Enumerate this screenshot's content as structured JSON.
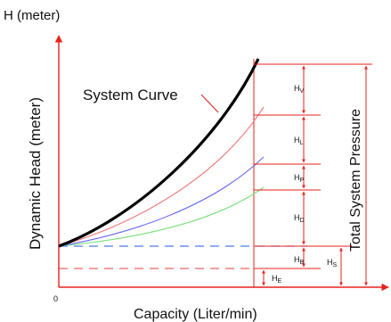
{
  "labels": {
    "y_unit": "H (meter)",
    "y_axis": "Dynamic Head (meter)",
    "x_axis": "Capacity (Liter/min)",
    "origin": "0",
    "system_curve": "System Curve",
    "total_pressure": "Total System Pressure"
  },
  "components": [
    {
      "letter": "H",
      "sub": "V"
    },
    {
      "letter": "H",
      "sub": "L"
    },
    {
      "letter": "H",
      "sub": "P"
    },
    {
      "letter": "H",
      "sub": "D"
    },
    {
      "letter": "H",
      "sub": "B"
    },
    {
      "letter": "H",
      "sub": "S"
    },
    {
      "letter": "H",
      "sub": "E"
    }
  ],
  "colors": {
    "axis": "#e8201c",
    "system_curve": "#000000",
    "curve_red": "#f08080",
    "curve_blue": "#6d6df0",
    "curve_green": "#7ee07e",
    "dashed_blue": "#4d7ae6",
    "dashed_red": "#e04040"
  }
}
